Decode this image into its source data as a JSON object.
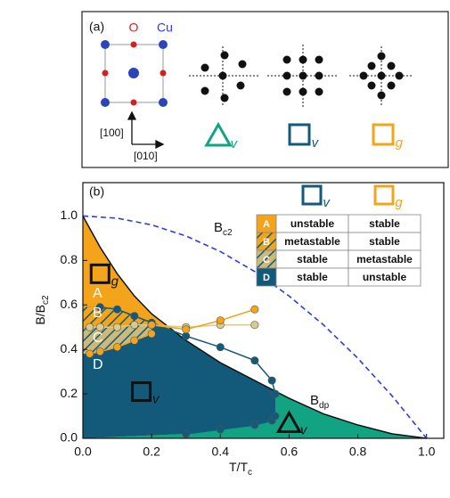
{
  "panel_a": {
    "label": "(a)",
    "oxygen": "O",
    "copper": "Cu",
    "dir_vertical": "[100]",
    "dir_horizontal": "[010]",
    "symbols": [
      {
        "sub": "v",
        "color": "#12a383"
      },
      {
        "sub": "v",
        "color": "#135a7a"
      },
      {
        "sub": "g",
        "color": "#f3a41b"
      }
    ]
  },
  "chart_data": {
    "type": "line",
    "panel_label": "(b)",
    "x_label": {
      "main": "T/T",
      "sub": "c"
    },
    "y_label": {
      "main": "B/B",
      "sub": "c2"
    },
    "xlim": [
      0,
      1.05
    ],
    "ylim": [
      0,
      1.15
    ],
    "xticks": [
      {
        "value": 0,
        "label": "0.0"
      },
      0.2,
      0.4,
      0.6,
      0.8,
      {
        "value": 1,
        "label": "1.0"
      }
    ],
    "yticks": [
      {
        "value": 0,
        "label": "0.0"
      },
      0.2,
      0.4,
      0.6,
      0.8,
      {
        "value": 1,
        "label": "1.0"
      }
    ],
    "series": [
      {
        "color": "#2b3de6",
        "dashed": true,
        "markers": false,
        "x": [
          0,
          0.1,
          0.2,
          0.3,
          0.4,
          0.5,
          0.6,
          0.7,
          0.8,
          0.9,
          1.0
        ],
        "values": [
          1,
          0.99,
          0.96,
          0.91,
          0.84,
          0.75,
          0.64,
          0.51,
          0.36,
          0.19,
          0
        ]
      },
      {
        "color": "#111111",
        "dashed": false,
        "markers": false,
        "x": [
          0,
          0.05,
          0.1,
          0.15,
          0.2,
          0.3,
          0.4,
          0.5,
          0.6,
          0.7,
          0.8,
          0.9,
          1.0
        ],
        "values": [
          1,
          0.86,
          0.74,
          0.64,
          0.56,
          0.44,
          0.34,
          0.26,
          0.18,
          0.11,
          0.06,
          0.02,
          0
        ]
      },
      {
        "color": "#135a7a",
        "dashed": false,
        "markers": true,
        "x": [
          0.05,
          0.1,
          0.15,
          0.2,
          0.3,
          0.4,
          0.5,
          0.55,
          0.56
        ],
        "values": [
          0.59,
          0.58,
          0.55,
          0.52,
          0.46,
          0.41,
          0.35,
          0.26,
          0.2
        ]
      },
      {
        "color": "#d9ca8e",
        "dashed": false,
        "markers": true,
        "x": [
          0.02,
          0.05,
          0.1,
          0.15,
          0.2,
          0.3,
          0.4,
          0.5
        ],
        "values": [
          0.5,
          0.5,
          0.5,
          0.51,
          0.51,
          0.5,
          0.51,
          0.51
        ]
      },
      {
        "color": "#f3a41b",
        "dashed": false,
        "markers": true,
        "x": [
          0.2,
          0.3,
          0.4,
          0.5
        ],
        "values": [
          0.51,
          0.49,
          0.53,
          0.58
        ]
      },
      {
        "color": "#f3a41b",
        "dashed": false,
        "markers": true,
        "x": [
          0.02,
          0.05,
          0.1,
          0.15,
          0.2
        ],
        "values": [
          0.38,
          0.39,
          0.41,
          0.44,
          0.47
        ]
      },
      {
        "color": "#135a7a",
        "dashed": false,
        "markers": true,
        "x": [
          0.3,
          0.4,
          0.5,
          0.55,
          0.56
        ],
        "values": [
          0.02,
          0.04,
          0.06,
          0.08,
          0.1
        ]
      }
    ],
    "curve_labels": [
      {
        "main": "B",
        "sub": "c2"
      },
      {
        "main": "B",
        "sub": "dp"
      }
    ],
    "regions": [
      "A",
      "B",
      "C",
      "D"
    ],
    "symbols": [
      {
        "sub": "g",
        "color": "#111111"
      },
      {
        "sub": "v",
        "color": "#111111"
      },
      {
        "sub": "v",
        "color": "#111111"
      }
    ],
    "table": {
      "header": [
        {
          "sub": "v",
          "color": "#135a7a"
        },
        {
          "sub": "g",
          "color": "#f3a41b"
        }
      ],
      "rows": [
        [
          "A",
          "unstable",
          "stable"
        ],
        [
          "B",
          "metastable",
          "stable"
        ],
        [
          "C",
          "stable",
          "metastable"
        ],
        [
          "D",
          "stable",
          "unstable"
        ]
      ]
    }
  }
}
